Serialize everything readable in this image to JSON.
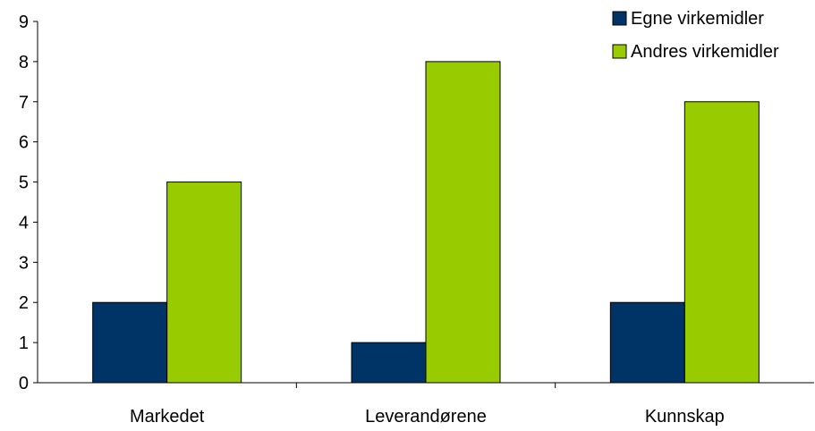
{
  "chart_data": {
    "type": "bar",
    "title": "",
    "xlabel": "",
    "ylabel": "",
    "categories": [
      "Markedet",
      "Leverandørene",
      "Kunnskap"
    ],
    "series": [
      {
        "name": "Egne virkemidler",
        "values": [
          2,
          1,
          2
        ],
        "color": "#003366"
      },
      {
        "name": "Andres virkemidler",
        "values": [
          5,
          8,
          7
        ],
        "color": "#99CC00"
      }
    ],
    "ylim": [
      0,
      9
    ],
    "yticks": [
      0,
      1,
      2,
      3,
      4,
      5,
      6,
      7,
      8,
      9
    ],
    "grid": false,
    "legend_position": "top-right"
  }
}
